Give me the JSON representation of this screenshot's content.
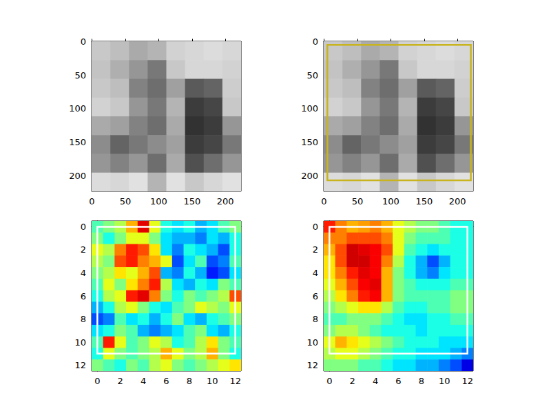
{
  "chart_data": [
    {
      "type": "image",
      "pixels": [
        [
          200,
          190,
          170,
          180,
          210,
          215,
          220,
          215
        ],
        [
          195,
          175,
          150,
          120,
          200,
          215,
          215,
          210
        ],
        [
          200,
          190,
          130,
          110,
          160,
          90,
          100,
          205
        ],
        [
          210,
          200,
          150,
          120,
          180,
          60,
          70,
          200
        ],
        [
          170,
          160,
          130,
          110,
          170,
          50,
          60,
          150
        ],
        [
          140,
          100,
          120,
          140,
          160,
          60,
          70,
          120
        ],
        [
          150,
          130,
          150,
          110,
          170,
          80,
          110,
          150
        ],
        [
          220,
          215,
          225,
          180,
          225,
          200,
          215,
          225
        ]
      ],
      "xlim": [
        -0.5,
        223.5
      ],
      "ylim": [
        223.5,
        -0.5
      ],
      "xticks": [
        0,
        50,
        100,
        150,
        200
      ],
      "yticks": [
        0,
        50,
        100,
        150,
        200
      ]
    },
    {
      "type": "image",
      "pixels": [
        [
          200,
          190,
          170,
          180,
          210,
          215,
          220,
          215
        ],
        [
          195,
          175,
          150,
          120,
          200,
          215,
          215,
          210
        ],
        [
          200,
          190,
          130,
          110,
          160,
          90,
          100,
          205
        ],
        [
          210,
          200,
          150,
          120,
          180,
          60,
          70,
          200
        ],
        [
          170,
          160,
          130,
          110,
          170,
          50,
          60,
          150
        ],
        [
          140,
          100,
          120,
          140,
          160,
          60,
          70,
          120
        ],
        [
          150,
          130,
          150,
          110,
          170,
          80,
          110,
          150
        ],
        [
          220,
          215,
          225,
          180,
          225,
          200,
          215,
          225
        ]
      ],
      "box": {
        "x": [
          5,
          220
        ],
        "y": [
          5,
          207
        ],
        "color": "#c8b41e"
      },
      "xlim": [
        -0.5,
        223.5
      ],
      "ylim": [
        223.5,
        -0.5
      ],
      "xticks": [
        0,
        50,
        100,
        150,
        200
      ],
      "yticks": [
        0,
        50,
        100,
        150,
        200
      ]
    },
    {
      "type": "heatmap",
      "cells": [
        [
          0.45,
          0.5,
          0.55,
          0.7,
          0.9,
          0.6,
          0.4,
          0.35,
          0.4,
          0.3,
          0.35,
          0.45,
          0.5
        ],
        [
          0.5,
          0.4,
          0.5,
          0.6,
          0.6,
          0.5,
          0.35,
          0.3,
          0.3,
          0.25,
          0.35,
          0.3,
          0.4
        ],
        [
          0.6,
          0.55,
          0.75,
          0.85,
          0.8,
          0.65,
          0.35,
          0.25,
          0.4,
          0.35,
          0.3,
          0.2,
          0.4
        ],
        [
          0.55,
          0.5,
          0.8,
          0.85,
          0.75,
          0.7,
          0.6,
          0.2,
          0.35,
          0.45,
          0.2,
          0.25,
          0.45
        ],
        [
          0.5,
          0.55,
          0.65,
          0.6,
          0.7,
          0.8,
          0.3,
          0.25,
          0.4,
          0.3,
          0.15,
          0.2,
          0.35
        ],
        [
          0.45,
          0.6,
          0.5,
          0.65,
          0.75,
          0.85,
          0.55,
          0.35,
          0.3,
          0.4,
          0.35,
          0.5,
          0.45
        ],
        [
          0.4,
          0.55,
          0.6,
          0.85,
          0.9,
          0.75,
          0.5,
          0.4,
          0.5,
          0.45,
          0.5,
          0.55,
          0.8
        ],
        [
          0.3,
          0.4,
          0.55,
          0.6,
          0.5,
          0.4,
          0.35,
          0.45,
          0.5,
          0.6,
          0.55,
          0.5,
          0.6
        ],
        [
          0.2,
          0.25,
          0.45,
          0.35,
          0.4,
          0.3,
          0.4,
          0.5,
          0.35,
          0.3,
          0.4,
          0.45,
          0.5
        ],
        [
          0.35,
          0.4,
          0.5,
          0.45,
          0.3,
          0.25,
          0.3,
          0.35,
          0.45,
          0.5,
          0.35,
          0.3,
          0.4
        ],
        [
          0.45,
          0.85,
          0.6,
          0.45,
          0.5,
          0.6,
          0.55,
          0.4,
          0.45,
          0.55,
          0.65,
          0.5,
          0.45
        ],
        [
          0.4,
          0.6,
          0.5,
          0.45,
          0.5,
          0.55,
          0.7,
          0.6,
          0.5,
          0.55,
          0.7,
          0.5,
          0.4
        ],
        [
          0.5,
          0.45,
          0.4,
          0.5,
          0.45,
          0.55,
          0.6,
          0.5,
          0.45,
          0.5,
          0.55,
          0.6,
          0.65
        ]
      ],
      "color_range": [
        0,
        1
      ],
      "box": {
        "x": [
          0,
          12
        ],
        "y": [
          0,
          11
        ],
        "color": "#ffffff"
      },
      "xlim": [
        -0.5,
        12.5
      ],
      "ylim": [
        12.5,
        -0.5
      ],
      "xticks": [
        0,
        2,
        4,
        6,
        8,
        10,
        12
      ],
      "yticks": [
        0,
        2,
        4,
        6,
        8,
        10,
        12
      ]
    },
    {
      "type": "heatmap",
      "cells": [
        [
          0.85,
          0.75,
          0.7,
          0.72,
          0.75,
          0.7,
          0.6,
          0.55,
          0.5,
          0.5,
          0.45,
          0.4,
          0.4
        ],
        [
          0.75,
          0.75,
          0.8,
          0.8,
          0.8,
          0.75,
          0.6,
          0.5,
          0.45,
          0.45,
          0.45,
          0.4,
          0.4
        ],
        [
          0.7,
          0.8,
          0.92,
          0.9,
          0.88,
          0.8,
          0.6,
          0.45,
          0.4,
          0.35,
          0.4,
          0.4,
          0.4
        ],
        [
          0.65,
          0.8,
          0.92,
          0.92,
          0.88,
          0.75,
          0.55,
          0.4,
          0.3,
          0.2,
          0.3,
          0.4,
          0.4
        ],
        [
          0.65,
          0.75,
          0.85,
          0.9,
          0.88,
          0.7,
          0.5,
          0.4,
          0.3,
          0.25,
          0.35,
          0.4,
          0.4
        ],
        [
          0.6,
          0.7,
          0.8,
          0.88,
          0.9,
          0.7,
          0.5,
          0.45,
          0.4,
          0.4,
          0.4,
          0.45,
          0.45
        ],
        [
          0.55,
          0.65,
          0.75,
          0.85,
          0.88,
          0.7,
          0.5,
          0.45,
          0.45,
          0.45,
          0.45,
          0.5,
          0.5
        ],
        [
          0.5,
          0.55,
          0.6,
          0.65,
          0.65,
          0.55,
          0.45,
          0.4,
          0.4,
          0.45,
          0.45,
          0.5,
          0.5
        ],
        [
          0.45,
          0.45,
          0.5,
          0.5,
          0.5,
          0.45,
          0.4,
          0.35,
          0.35,
          0.4,
          0.4,
          0.45,
          0.45
        ],
        [
          0.5,
          0.55,
          0.55,
          0.5,
          0.45,
          0.4,
          0.4,
          0.4,
          0.35,
          0.4,
          0.4,
          0.4,
          0.4
        ],
        [
          0.6,
          0.7,
          0.65,
          0.6,
          0.55,
          0.5,
          0.45,
          0.4,
          0.4,
          0.4,
          0.35,
          0.35,
          0.35
        ],
        [
          0.55,
          0.6,
          0.6,
          0.55,
          0.5,
          0.45,
          0.4,
          0.4,
          0.35,
          0.35,
          0.35,
          0.3,
          0.25
        ],
        [
          0.5,
          0.5,
          0.5,
          0.45,
          0.45,
          0.4,
          0.35,
          0.35,
          0.3,
          0.3,
          0.25,
          0.2,
          0.1
        ]
      ],
      "color_range": [
        0,
        1
      ],
      "box": {
        "x": [
          0,
          12
        ],
        "y": [
          0,
          11
        ],
        "color": "#ffffff"
      },
      "xlim": [
        -0.5,
        12.5
      ],
      "ylim": [
        12.5,
        -0.5
      ],
      "xticks": [
        0,
        2,
        4,
        6,
        8,
        10,
        12
      ],
      "yticks": [
        0,
        2,
        4,
        6,
        8,
        10,
        12
      ]
    }
  ]
}
